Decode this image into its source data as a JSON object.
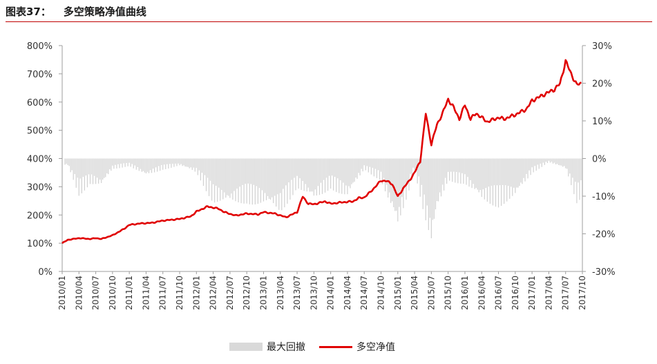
{
  "figure": {
    "label": "图表37：",
    "title": "多空策略净值曲线"
  },
  "colors": {
    "nav_line": "#e00000",
    "drawdown_bar": "#d0d0d0",
    "title_rule": "#c00000",
    "axis": "#9e9e9e"
  },
  "chart_data": {
    "type": "line+bar",
    "title": "多空策略净值曲线",
    "x_ticks": [
      "2010/01",
      "2010/04",
      "2010/07",
      "2010/10",
      "2011/01",
      "2011/04",
      "2011/07",
      "2011/10",
      "2012/01",
      "2012/04",
      "2012/07",
      "2012/10",
      "2013/01",
      "2013/04",
      "2013/07",
      "2013/10",
      "2014/01",
      "2014/04",
      "2014/07",
      "2014/10",
      "2015/01",
      "2015/04",
      "2015/07",
      "2015/10",
      "2016/01",
      "2016/04",
      "2016/07",
      "2016/10",
      "2017/01",
      "2017/04",
      "2017/07",
      "2017/10"
    ],
    "y_left": {
      "ticks": [
        "800%",
        "700%",
        "600%",
        "500%",
        "400%",
        "300%",
        "200%",
        "100%",
        "0%"
      ],
      "range": [
        0,
        800
      ]
    },
    "y_right": {
      "ticks": [
        "30%",
        "20%",
        "10%",
        "0%",
        "-10%",
        "-20%",
        "-30%"
      ],
      "range": [
        -30,
        30
      ]
    },
    "legend": [
      "最大回撤",
      "多空净值"
    ],
    "series": [
      {
        "name": "多空净值",
        "axis": "left",
        "kind": "line",
        "unit": "%",
        "x": [
          "2010/01",
          "2010/02",
          "2010/04",
          "2010/06",
          "2010/07",
          "2010/08",
          "2010/10",
          "2010/12",
          "2011/01",
          "2011/03",
          "2011/05",
          "2011/07",
          "2011/09",
          "2011/10",
          "2011/12",
          "2012/01",
          "2012/03",
          "2012/05",
          "2012/06",
          "2012/08",
          "2012/10",
          "2012/12",
          "2013/01",
          "2013/03",
          "2013/05",
          "2013/07",
          "2013/08",
          "2013/09",
          "2013/10",
          "2013/12",
          "2014/01",
          "2014/03",
          "2014/05",
          "2014/06",
          "2014/07",
          "2014/08",
          "2014/09",
          "2014/10",
          "2014/11",
          "2014/12",
          "2015/01",
          "2015/02",
          "2015/03",
          "2015/04",
          "2015/05",
          "2015/06",
          "2015/07",
          "2015/08",
          "2015/09",
          "2015/10",
          "2015/11",
          "2015/12",
          "2016/01",
          "2016/02",
          "2016/03",
          "2016/05",
          "2016/07",
          "2016/08",
          "2016/10",
          "2016/12",
          "2017/01",
          "2017/03",
          "2017/05",
          "2017/06",
          "2017/07",
          "2017/08",
          "2017/09",
          "2017/10",
          "2017/11"
        ],
        "values": [
          100,
          112,
          118,
          115,
          118,
          115,
          128,
          150,
          165,
          170,
          172,
          180,
          184,
          186,
          195,
          212,
          230,
          222,
          210,
          198,
          205,
          202,
          210,
          205,
          192,
          210,
          265,
          240,
          238,
          248,
          240,
          245,
          248,
          260,
          262,
          280,
          300,
          322,
          320,
          310,
          265,
          295,
          320,
          350,
          390,
          560,
          450,
          520,
          560,
          610,
          580,
          540,
          590,
          540,
          560,
          530,
          545,
          540,
          555,
          575,
          605,
          625,
          645,
          665,
          745,
          700,
          660,
          670,
          680
        ],
        "approximate": true
      },
      {
        "name": "最大回撤",
        "axis": "right",
        "kind": "bar",
        "unit": "%",
        "x": [
          "2010/02",
          "2010/04",
          "2010/06",
          "2010/08",
          "2010/10",
          "2011/01",
          "2011/04",
          "2011/07",
          "2011/10",
          "2012/01",
          "2012/04",
          "2012/07",
          "2012/10",
          "2013/01",
          "2013/04",
          "2013/07",
          "2013/10",
          "2014/01",
          "2014/04",
          "2014/07",
          "2014/10",
          "2015/01",
          "2015/04",
          "2015/07",
          "2015/08",
          "2015/10",
          "2016/01",
          "2016/04",
          "2016/07",
          "2016/10",
          "2017/01",
          "2017/04",
          "2017/07",
          "2017/09",
          "2017/10"
        ],
        "values": [
          -2,
          -10,
          -7,
          -8,
          -3,
          -2,
          -5,
          -3,
          -2,
          -4,
          -12,
          -13,
          -12,
          -13,
          -15,
          -8,
          -12,
          -8,
          -11,
          -3,
          -6,
          -20,
          -3,
          -25,
          -15,
          -6,
          -7,
          -12,
          -13,
          -11,
          -4,
          -1,
          -3,
          -12,
          -10
        ],
        "approximate": true
      }
    ]
  }
}
